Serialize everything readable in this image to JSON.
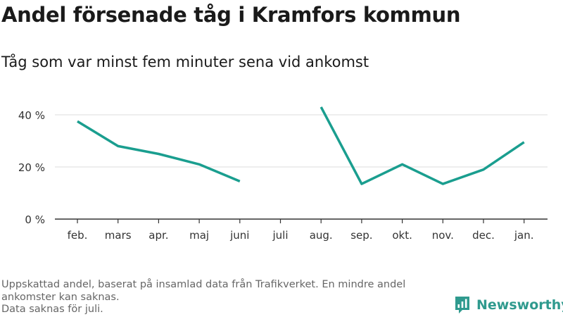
{
  "header": {
    "title": "Andel försenade tåg i Kramfors kommun",
    "subtitle": "Tåg som var minst fem minuter sena vid ankomst"
  },
  "chart_data": {
    "type": "line",
    "categories": [
      "feb.",
      "mars",
      "apr.",
      "maj",
      "juni",
      "juli",
      "aug.",
      "sep.",
      "okt.",
      "nov.",
      "dec.",
      "jan."
    ],
    "series": [
      {
        "values": [
          37.5,
          28,
          25,
          21,
          14.5,
          null,
          43,
          13.5,
          21,
          13.5,
          19,
          29.5
        ],
        "color": "#1a9e8f"
      }
    ],
    "yticks": [
      0,
      20,
      40
    ],
    "ytick_labels": [
      "0 %",
      "20 %",
      "40 %"
    ],
    "ylim": [
      0,
      45
    ],
    "grid": true,
    "xlabel": "",
    "ylabel": ""
  },
  "footer": {
    "note_lines": [
      "Uppskattad andel, baserat på insamlad data från Trafikverket. En mindre andel",
      "ankomster kan saknas.",
      "Data saknas för juli."
    ],
    "brand": "Newsworthy",
    "brand_icon": "newsworthy-logo-icon",
    "brand_color": "#2f9a8e"
  }
}
